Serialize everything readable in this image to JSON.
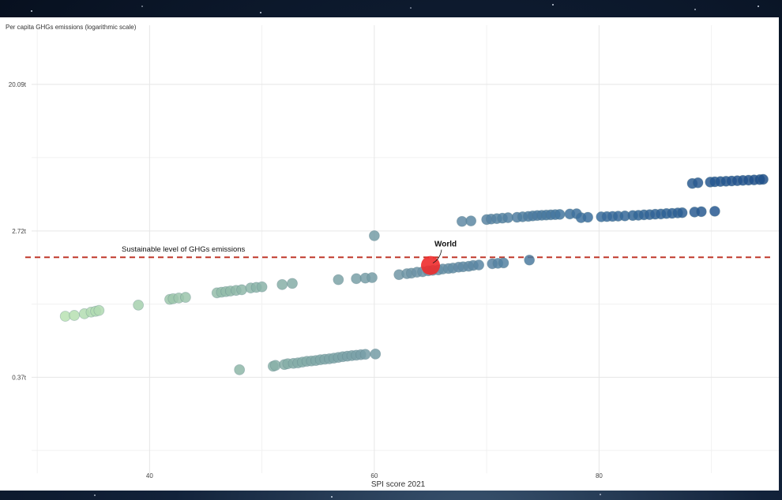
{
  "chart_data": {
    "type": "scatter",
    "title": "",
    "ylabel": "Per capita GHGs emissions (logarithmic scale)",
    "xlabel": "SPI score 2021",
    "y_scale": "log",
    "x_ticks": [
      40,
      60,
      80
    ],
    "y_ticks": [
      {
        "value": 0.37,
        "label": "0.37t"
      },
      {
        "value": 2.72,
        "label": "2.72t"
      },
      {
        "value": 20.09,
        "label": "20.09t"
      }
    ],
    "xlim": [
      29.5,
      96
    ],
    "ylim": [
      0.1,
      45
    ],
    "grid": true,
    "threshold": {
      "label": "Sustainable level of GHGs emissions",
      "value": 1.9,
      "color": "#c0392b"
    },
    "highlight": {
      "label": "World",
      "x": 65,
      "y": 1.7,
      "color": "#ee2c2c"
    },
    "color_scale": [
      "#b9e3b3",
      "#8fb8a8",
      "#6e94a6",
      "#3a6e9d",
      "#1f4f8a"
    ],
    "points": [
      [
        32.5,
        0.85
      ],
      [
        33.3,
        0.86
      ],
      [
        34.2,
        0.88
      ],
      [
        34.8,
        0.9
      ],
      [
        35.2,
        0.91
      ],
      [
        35.5,
        0.92
      ],
      [
        39,
        0.99
      ],
      [
        41.8,
        1.07
      ],
      [
        42.1,
        1.08
      ],
      [
        42.6,
        1.09
      ],
      [
        43.2,
        1.1
      ],
      [
        46,
        1.17
      ],
      [
        46.4,
        1.18
      ],
      [
        46.8,
        1.19
      ],
      [
        47.2,
        1.2
      ],
      [
        47.7,
        1.21
      ],
      [
        48.2,
        1.22
      ],
      [
        49,
        1.25
      ],
      [
        49.5,
        1.26
      ],
      [
        50,
        1.27
      ],
      [
        51.8,
        1.31
      ],
      [
        52.7,
        1.33
      ],
      [
        48,
        0.41
      ],
      [
        51,
        0.43
      ],
      [
        51.2,
        0.435
      ],
      [
        52,
        0.44
      ],
      [
        52.3,
        0.445
      ],
      [
        52.8,
        0.447
      ],
      [
        53.2,
        0.45
      ],
      [
        53.6,
        0.455
      ],
      [
        54,
        0.46
      ],
      [
        54.4,
        0.462
      ],
      [
        54.8,
        0.465
      ],
      [
        55.2,
        0.47
      ],
      [
        55.6,
        0.473
      ],
      [
        56,
        0.476
      ],
      [
        56.4,
        0.48
      ],
      [
        56.8,
        0.485
      ],
      [
        57.2,
        0.49
      ],
      [
        57.6,
        0.493
      ],
      [
        58,
        0.497
      ],
      [
        58.4,
        0.5
      ],
      [
        58.8,
        0.503
      ],
      [
        59.2,
        0.506
      ],
      [
        60.1,
        0.508
      ],
      [
        60,
        2.55
      ],
      [
        56.8,
        1.4
      ],
      [
        58.4,
        1.42
      ],
      [
        59.2,
        1.43
      ],
      [
        59.8,
        1.44
      ],
      [
        62.2,
        1.5
      ],
      [
        62.9,
        1.52
      ],
      [
        63.3,
        1.53
      ],
      [
        63.8,
        1.55
      ],
      [
        64.3,
        1.56
      ],
      [
        64.8,
        1.58
      ],
      [
        65.2,
        1.59
      ],
      [
        65.7,
        1.6
      ],
      [
        66.1,
        1.62
      ],
      [
        66.6,
        1.63
      ],
      [
        67,
        1.64
      ],
      [
        67.5,
        1.66
      ],
      [
        67.9,
        1.67
      ],
      [
        68.4,
        1.68
      ],
      [
        68.8,
        1.7
      ],
      [
        69.3,
        1.71
      ],
      [
        70.5,
        1.74
      ],
      [
        71,
        1.75
      ],
      [
        71.5,
        1.76
      ],
      [
        73.8,
        1.83
      ],
      [
        67.8,
        3.1
      ],
      [
        68.6,
        3.12
      ],
      [
        70,
        3.18
      ],
      [
        70.4,
        3.2
      ],
      [
        70.9,
        3.22
      ],
      [
        71.4,
        3.24
      ],
      [
        71.9,
        3.26
      ],
      [
        72.7,
        3.28
      ],
      [
        73.2,
        3.3
      ],
      [
        73.7,
        3.32
      ],
      [
        74.1,
        3.34
      ],
      [
        74.5,
        3.36
      ],
      [
        74.9,
        3.37
      ],
      [
        75.3,
        3.38
      ],
      [
        75.7,
        3.39
      ],
      [
        76.1,
        3.4
      ],
      [
        76.5,
        3.41
      ],
      [
        77.4,
        3.43
      ],
      [
        78,
        3.44
      ],
      [
        78.4,
        3.26
      ],
      [
        79,
        3.28
      ],
      [
        80.2,
        3.3
      ],
      [
        80.7,
        3.31
      ],
      [
        81.2,
        3.32
      ],
      [
        81.7,
        3.33
      ],
      [
        82.3,
        3.34
      ],
      [
        83,
        3.36
      ],
      [
        83.5,
        3.37
      ],
      [
        84,
        3.39
      ],
      [
        84.5,
        3.4
      ],
      [
        85,
        3.42
      ],
      [
        85.5,
        3.43
      ],
      [
        86,
        3.45
      ],
      [
        86.5,
        3.46
      ],
      [
        87,
        3.48
      ],
      [
        87.4,
        3.49
      ],
      [
        88.5,
        3.52
      ],
      [
        89.1,
        3.54
      ],
      [
        90.3,
        3.56
      ],
      [
        88.3,
        5.2
      ],
      [
        88.8,
        5.25
      ],
      [
        89.9,
        5.3
      ],
      [
        90.3,
        5.32
      ],
      [
        90.8,
        5.34
      ],
      [
        91.3,
        5.36
      ],
      [
        91.8,
        5.38
      ],
      [
        92.3,
        5.4
      ],
      [
        92.8,
        5.42
      ],
      [
        93.3,
        5.44
      ],
      [
        93.8,
        5.46
      ],
      [
        94.3,
        5.48
      ],
      [
        94.6,
        5.5
      ]
    ]
  }
}
